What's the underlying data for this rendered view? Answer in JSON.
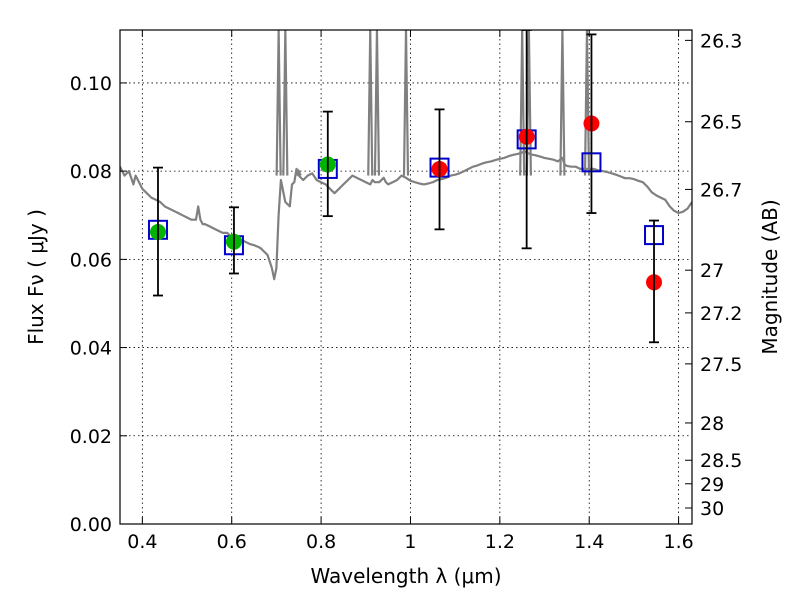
{
  "chart_data": {
    "type": "scatter",
    "xlabel": "Wavelength  λ (μm)",
    "ylabel": "Flux  Fν  ( μJy )",
    "y2label": "Magnitude (AB)",
    "xlim": [
      0.35,
      1.63
    ],
    "ylim": [
      0.0,
      0.112
    ],
    "grid": true,
    "x_ticks": [
      {
        "v": 0.4,
        "label": "0.4"
      },
      {
        "v": 0.6,
        "label": "0.6"
      },
      {
        "v": 0.8,
        "label": "0.8"
      },
      {
        "v": 1.0,
        "label": "1"
      },
      {
        "v": 1.2,
        "label": "1.2"
      },
      {
        "v": 1.4,
        "label": "1.4"
      },
      {
        "v": 1.6,
        "label": "1.6"
      }
    ],
    "y_ticks": [
      {
        "v": 0.0,
        "label": "0.00"
      },
      {
        "v": 0.02,
        "label": "0.02"
      },
      {
        "v": 0.04,
        "label": "0.04"
      },
      {
        "v": 0.06,
        "label": "0.06"
      },
      {
        "v": 0.08,
        "label": "0.08"
      },
      {
        "v": 0.1,
        "label": "0.10"
      }
    ],
    "y2_ticks": [
      {
        "mag": 26.3,
        "label": "26.3"
      },
      {
        "mag": 26.5,
        "label": "26.5"
      },
      {
        "mag": 26.7,
        "label": "26.7"
      },
      {
        "mag": 27.0,
        "label": "27"
      },
      {
        "mag": 27.2,
        "label": "27.2"
      },
      {
        "mag": 27.5,
        "label": "27.5"
      },
      {
        "mag": 28.0,
        "label": "28"
      },
      {
        "mag": 28.5,
        "label": "28.5"
      },
      {
        "mag": 29.0,
        "label": "29"
      },
      {
        "mag": 30.0,
        "label": "30"
      }
    ],
    "series": [
      {
        "kind": "line",
        "color": "#808080",
        "x": [
          0.35,
          0.36,
          0.37,
          0.38,
          0.385,
          0.39,
          0.4,
          0.41,
          0.42,
          0.43,
          0.44,
          0.45,
          0.46,
          0.47,
          0.48,
          0.49,
          0.5,
          0.51,
          0.52,
          0.525,
          0.53,
          0.535,
          0.54,
          0.55,
          0.56,
          0.57,
          0.58,
          0.59,
          0.6,
          0.61,
          0.62,
          0.63,
          0.64,
          0.65,
          0.655,
          0.66,
          0.665,
          0.67,
          0.68,
          0.69,
          0.695,
          0.7,
          0.705,
          0.71,
          0.72,
          0.73,
          0.735,
          0.74,
          0.745,
          0.75,
          0.76,
          0.77,
          0.78,
          0.79,
          0.8,
          0.81,
          0.82,
          0.83,
          0.84,
          0.85,
          0.86,
          0.87,
          0.88,
          0.89,
          0.9,
          0.91,
          0.915,
          0.92,
          0.93,
          0.94,
          0.945,
          0.95,
          0.96,
          0.97,
          0.98,
          0.99,
          1.0,
          1.01,
          1.02,
          1.03,
          1.04,
          1.05,
          1.06,
          1.07,
          1.08,
          1.09,
          1.1,
          1.11,
          1.12,
          1.13,
          1.14,
          1.15,
          1.16,
          1.17,
          1.18,
          1.19,
          1.2,
          1.21,
          1.22,
          1.23,
          1.24,
          1.25,
          1.255,
          1.26,
          1.27,
          1.28,
          1.29,
          1.3,
          1.31,
          1.32,
          1.33,
          1.34,
          1.345,
          1.35,
          1.36,
          1.37,
          1.38,
          1.39,
          1.4,
          1.41,
          1.42,
          1.43,
          1.44,
          1.45,
          1.46,
          1.47,
          1.48,
          1.49,
          1.5,
          1.51,
          1.52,
          1.53,
          1.54,
          1.55,
          1.56,
          1.57,
          1.58,
          1.59,
          1.6,
          1.61,
          1.62,
          1.63
        ],
        "y": [
          0.081,
          0.079,
          0.08,
          0.077,
          0.079,
          0.078,
          0.076,
          0.075,
          0.074,
          0.0735,
          0.073,
          0.072,
          0.0715,
          0.071,
          0.0705,
          0.07,
          0.0695,
          0.069,
          0.069,
          0.072,
          0.069,
          0.068,
          0.068,
          0.0675,
          0.067,
          0.0665,
          0.066,
          0.066,
          0.065,
          0.0648,
          0.0645,
          0.064,
          0.0635,
          0.0632,
          0.063,
          0.0628,
          0.0625,
          0.062,
          0.061,
          0.058,
          0.0555,
          0.058,
          0.07,
          0.078,
          0.073,
          0.072,
          0.077,
          0.0775,
          0.0805,
          0.079,
          0.078,
          0.079,
          0.0795,
          0.078,
          0.0775,
          0.077,
          0.076,
          0.075,
          0.076,
          0.077,
          0.078,
          0.079,
          0.0785,
          0.078,
          0.0775,
          0.077,
          0.078,
          0.0775,
          0.0775,
          0.0785,
          0.0775,
          0.077,
          0.0775,
          0.078,
          0.079,
          0.0785,
          0.0778,
          0.0775,
          0.0772,
          0.077,
          0.0772,
          0.0775,
          0.078,
          0.0782,
          0.0785,
          0.079,
          0.0792,
          0.0795,
          0.08,
          0.0805,
          0.081,
          0.0813,
          0.0817,
          0.082,
          0.0822,
          0.0825,
          0.0828,
          0.083,
          0.0834,
          0.0837,
          0.0839,
          0.0842,
          0.0845,
          0.0842,
          0.0838,
          0.0836,
          0.0833,
          0.083,
          0.0828,
          0.0826,
          0.0822,
          0.083,
          0.0815,
          0.0812,
          0.081,
          0.081,
          0.0805,
          0.0805,
          0.0805,
          0.0805,
          0.0802,
          0.08,
          0.0798,
          0.0795,
          0.0792,
          0.0788,
          0.0784,
          0.0784,
          0.0782,
          0.0778,
          0.0775,
          0.0765,
          0.0752,
          0.0745,
          0.074,
          0.0735,
          0.072,
          0.071,
          0.0705,
          0.0708,
          0.0715,
          0.073
        ]
      },
      {
        "kind": "spikes",
        "color": "#808080",
        "x": [
          0.705,
          0.72,
          0.75,
          0.91,
          0.925,
          0.99,
          1.25,
          1.265,
          1.34,
          1.395
        ],
        "y": [
          0.112,
          0.112,
          0.08,
          0.112,
          0.112,
          0.112,
          0.112,
          0.112,
          0.112,
          0.112
        ]
      },
      {
        "kind": "markers",
        "marker": "square",
        "color": "#0000cc",
        "x": [
          0.435,
          0.605,
          0.815,
          1.065,
          1.26,
          1.405,
          1.545
        ],
        "y": [
          0.0667,
          0.0632,
          0.0805,
          0.0808,
          0.0872,
          0.082,
          0.0655
        ]
      },
      {
        "kind": "markers",
        "marker": "circle",
        "color": "#00b400",
        "x": [
          0.435,
          0.605,
          0.815
        ],
        "y": [
          0.0662,
          0.064,
          0.0815
        ]
      },
      {
        "kind": "markers",
        "marker": "circle",
        "color": "#ff0000",
        "x": [
          1.065,
          1.26,
          1.405,
          1.545
        ],
        "y": [
          0.0805,
          0.0878,
          0.0908,
          0.0548
        ]
      },
      {
        "kind": "errorbars",
        "color": "#000000",
        "x": [
          0.435,
          0.605,
          0.815,
          1.065,
          1.26,
          1.405,
          1.545
        ],
        "low": [
          0.0518,
          0.0568,
          0.0698,
          0.0668,
          0.0625,
          0.0705,
          0.0412
        ],
        "high": [
          0.0808,
          0.0718,
          0.0935,
          0.094,
          0.112,
          0.111,
          0.0688
        ]
      }
    ]
  }
}
